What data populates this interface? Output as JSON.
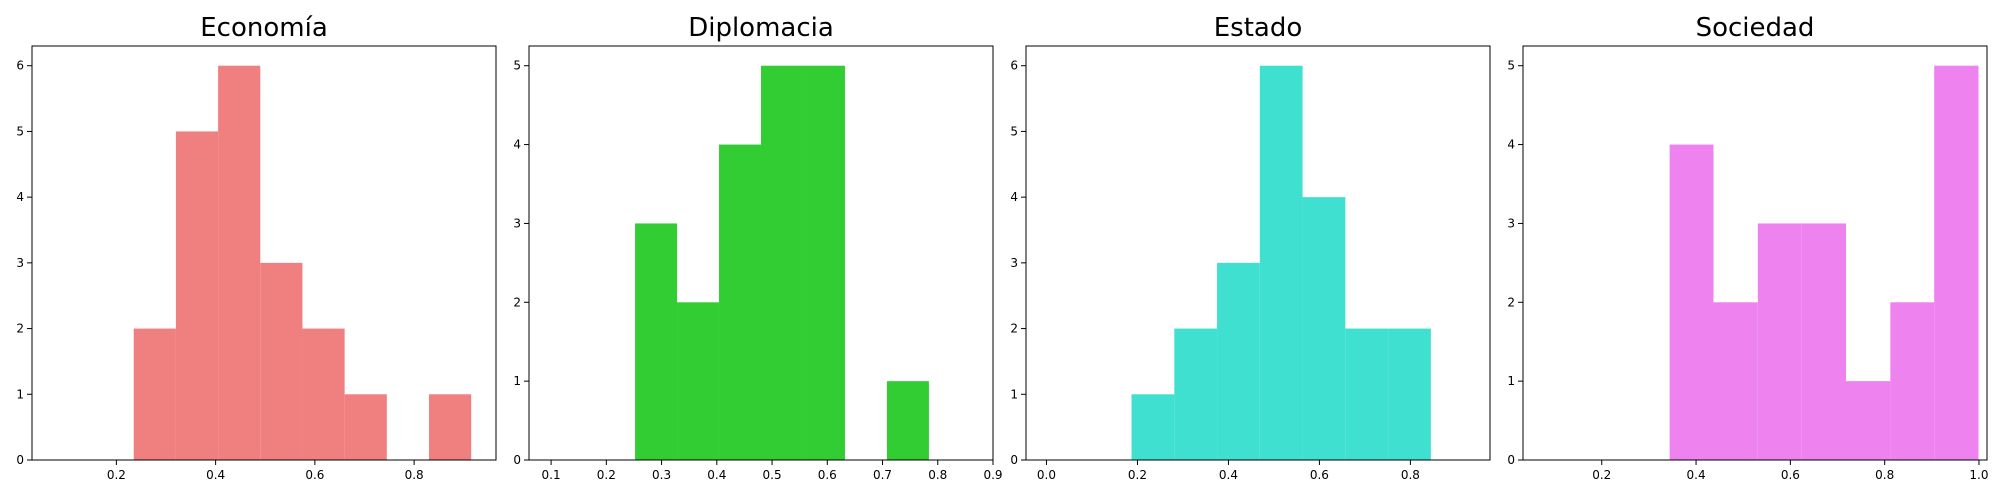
{
  "chart_data": [
    {
      "type": "bar",
      "title": "Economía",
      "color": "#f08080",
      "xlim": [
        0.03,
        0.965
      ],
      "ylim": [
        0,
        6.3
      ],
      "xticks": [
        "0.2",
        "0.4",
        "0.6",
        "0.8"
      ],
      "yticks": [
        "0",
        "1",
        "2",
        "3",
        "4",
        "5",
        "6"
      ],
      "bins": [
        {
          "x0": 0.235,
          "x1": 0.32,
          "count": 2
        },
        {
          "x0": 0.32,
          "x1": 0.405,
          "count": 5
        },
        {
          "x0": 0.405,
          "x1": 0.49,
          "count": 6
        },
        {
          "x0": 0.49,
          "x1": 0.575,
          "count": 3
        },
        {
          "x0": 0.575,
          "x1": 0.66,
          "count": 2
        },
        {
          "x0": 0.66,
          "x1": 0.745,
          "count": 1
        },
        {
          "x0": 0.745,
          "x1": 0.83,
          "count": 0
        },
        {
          "x0": 0.83,
          "x1": 0.915,
          "count": 1
        }
      ]
    },
    {
      "type": "bar",
      "title": "Diplomacia",
      "color": "#32cd32",
      "xlim": [
        0.06,
        0.9
      ],
      "ylim": [
        0,
        5.25
      ],
      "xticks": [
        "0.1",
        "0.2",
        "0.3",
        "0.4",
        "0.5",
        "0.6",
        "0.7",
        "0.8",
        "0.9"
      ],
      "yticks": [
        "0",
        "1",
        "2",
        "3",
        "4",
        "5"
      ],
      "bins": [
        {
          "x0": 0.252,
          "x1": 0.328,
          "count": 3
        },
        {
          "x0": 0.328,
          "x1": 0.404,
          "count": 2
        },
        {
          "x0": 0.404,
          "x1": 0.48,
          "count": 4
        },
        {
          "x0": 0.48,
          "x1": 0.556,
          "count": 5
        },
        {
          "x0": 0.556,
          "x1": 0.632,
          "count": 5
        },
        {
          "x0": 0.632,
          "x1": 0.708,
          "count": 0
        },
        {
          "x0": 0.708,
          "x1": 0.784,
          "count": 1
        }
      ]
    },
    {
      "type": "bar",
      "title": "Estado",
      "color": "#40e0d0",
      "xlim": [
        -0.045,
        0.975
      ],
      "ylim": [
        0,
        6.3
      ],
      "xticks": [
        "0.0",
        "0.2",
        "0.4",
        "0.6",
        "0.8"
      ],
      "yticks": [
        "0",
        "1",
        "2",
        "3",
        "4",
        "5",
        "6"
      ],
      "bins": [
        {
          "x0": 0.187,
          "x1": 0.281,
          "count": 1
        },
        {
          "x0": 0.281,
          "x1": 0.375,
          "count": 2
        },
        {
          "x0": 0.375,
          "x1": 0.469,
          "count": 3
        },
        {
          "x0": 0.469,
          "x1": 0.563,
          "count": 6
        },
        {
          "x0": 0.563,
          "x1": 0.657,
          "count": 4
        },
        {
          "x0": 0.657,
          "x1": 0.751,
          "count": 2
        },
        {
          "x0": 0.751,
          "x1": 0.845,
          "count": 2
        }
      ]
    },
    {
      "type": "bar",
      "title": "Sociedad",
      "color": "#ee82ee",
      "xlim": [
        0.033,
        1.017
      ],
      "ylim": [
        0,
        5.25
      ],
      "xticks": [
        "0.2",
        "0.4",
        "0.6",
        "0.8",
        "1.0"
      ],
      "yticks": [
        "0",
        "1",
        "2",
        "3",
        "4",
        "5"
      ],
      "bins": [
        {
          "x0": 0.344,
          "x1": 0.437,
          "count": 4
        },
        {
          "x0": 0.437,
          "x1": 0.531,
          "count": 2
        },
        {
          "x0": 0.531,
          "x1": 0.624,
          "count": 3
        },
        {
          "x0": 0.624,
          "x1": 0.718,
          "count": 3
        },
        {
          "x0": 0.718,
          "x1": 0.812,
          "count": 1
        },
        {
          "x0": 0.812,
          "x1": 0.905,
          "count": 2
        },
        {
          "x0": 0.905,
          "x1": 0.999,
          "count": 5
        }
      ]
    }
  ]
}
